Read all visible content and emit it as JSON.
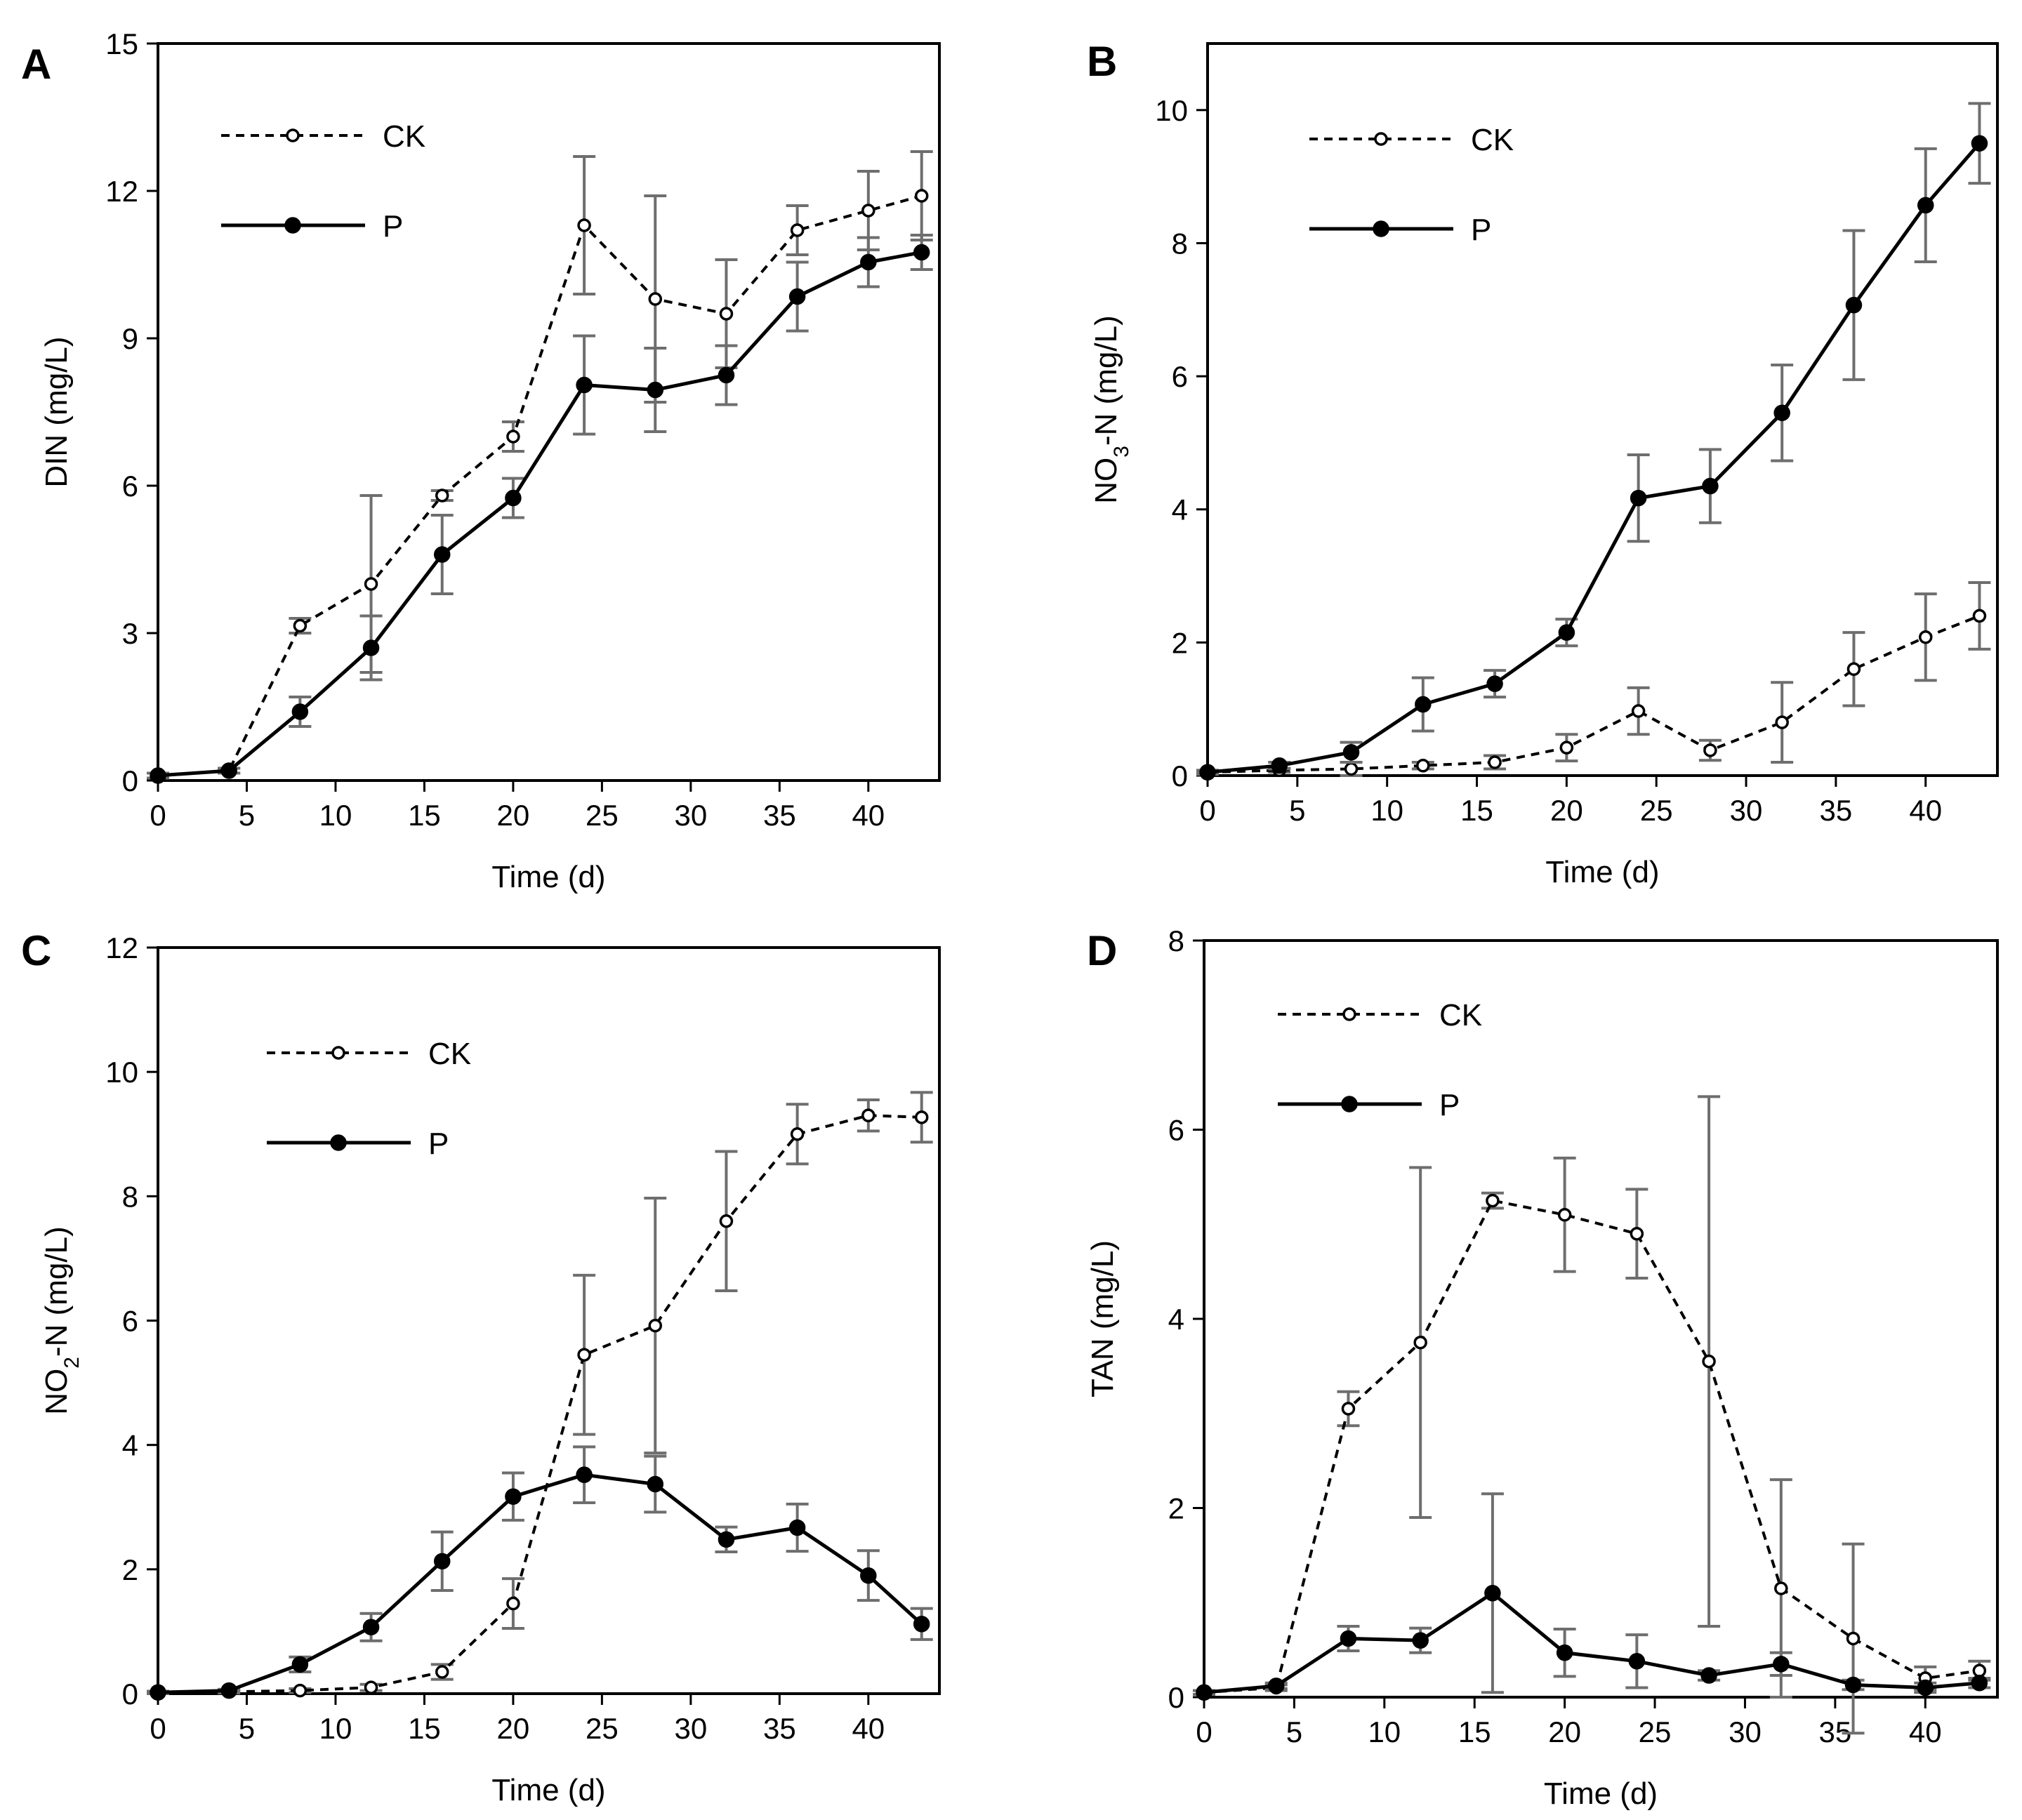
{
  "chart_data": [
    {
      "type": "line",
      "panel": "A",
      "ylabel": "DIN (mg/L)",
      "xlabel": "Time (d)",
      "xlim": [
        0,
        44
      ],
      "ylim": [
        0,
        15
      ],
      "xticks": [
        0,
        5,
        10,
        15,
        20,
        25,
        30,
        35,
        40
      ],
      "yticks": [
        0,
        3,
        6,
        9,
        12,
        15
      ],
      "legend": "top-left",
      "series": [
        {
          "name": "CK",
          "style": "dashed",
          "marker": "open-circle",
          "x": [
            0,
            4,
            8,
            12,
            16,
            20,
            24,
            28,
            32,
            36,
            40,
            43
          ],
          "y": [
            0.1,
            0.2,
            3.15,
            4.0,
            5.8,
            7.0,
            11.3,
            9.8,
            9.5,
            11.2,
            11.6,
            11.9
          ],
          "err": [
            0.05,
            0.05,
            0.15,
            1.8,
            0.1,
            0.3,
            1.4,
            2.1,
            1.1,
            0.5,
            0.8,
            0.9
          ]
        },
        {
          "name": "P",
          "style": "solid",
          "marker": "filled-circle",
          "x": [
            0,
            4,
            8,
            12,
            16,
            20,
            24,
            28,
            32,
            36,
            40,
            43
          ],
          "y": [
            0.1,
            0.2,
            1.4,
            2.7,
            4.6,
            5.75,
            8.05,
            7.95,
            8.25,
            9.85,
            10.55,
            10.75
          ],
          "err": [
            0.05,
            0.05,
            0.3,
            0.65,
            0.8,
            0.4,
            1.0,
            0.85,
            0.6,
            0.7,
            0.5,
            0.35
          ]
        }
      ]
    },
    {
      "type": "line",
      "panel": "B",
      "ylabel": "NO3-N (mg/L)",
      "ylabel_main": "NO",
      "ylabel_sub": "3",
      "ylabel_rest": "-N (mg/L)",
      "xlabel": "Time (d)",
      "xlim": [
        0,
        44
      ],
      "ylim": [
        0,
        11
      ],
      "xticks": [
        0,
        5,
        10,
        15,
        20,
        25,
        30,
        35,
        40
      ],
      "yticks": [
        0,
        2,
        4,
        6,
        8,
        10
      ],
      "legend": "top-left",
      "series": [
        {
          "name": "CK",
          "style": "dashed",
          "marker": "open-circle",
          "x": [
            0,
            4,
            8,
            12,
            16,
            20,
            24,
            28,
            32,
            36,
            40,
            43
          ],
          "y": [
            0.05,
            0.08,
            0.1,
            0.15,
            0.2,
            0.42,
            0.97,
            0.38,
            0.8,
            1.6,
            2.08,
            2.4
          ],
          "err": [
            0.02,
            0.03,
            0.1,
            0.05,
            0.1,
            0.2,
            0.35,
            0.15,
            0.6,
            0.55,
            0.65,
            0.5
          ]
        },
        {
          "name": "P",
          "style": "solid",
          "marker": "filled-circle",
          "x": [
            0,
            4,
            8,
            12,
            16,
            20,
            24,
            28,
            32,
            36,
            40,
            43
          ],
          "y": [
            0.05,
            0.15,
            0.35,
            1.07,
            1.38,
            2.15,
            4.17,
            4.35,
            5.45,
            7.07,
            8.57,
            9.5
          ],
          "err": [
            0.03,
            0.05,
            0.15,
            0.4,
            0.2,
            0.2,
            0.65,
            0.55,
            0.72,
            1.12,
            0.85,
            0.6
          ]
        }
      ]
    },
    {
      "type": "line",
      "panel": "C",
      "ylabel": "NO2-N (mg/L)",
      "ylabel_main": "NO",
      "ylabel_sub": "2",
      "ylabel_rest": "-N (mg/L)",
      "xlabel": "Time (d)",
      "xlim": [
        0,
        44
      ],
      "ylim": [
        0,
        12
      ],
      "xticks": [
        0,
        5,
        10,
        15,
        20,
        25,
        30,
        35,
        40
      ],
      "yticks": [
        0,
        2,
        4,
        6,
        8,
        10,
        12
      ],
      "legend": "top-left",
      "series": [
        {
          "name": "CK",
          "style": "dashed",
          "marker": "open-circle",
          "x": [
            0,
            4,
            8,
            12,
            16,
            20,
            24,
            28,
            32,
            36,
            40,
            43
          ],
          "y": [
            0.02,
            0.03,
            0.05,
            0.1,
            0.35,
            1.45,
            5.45,
            5.92,
            7.6,
            9.0,
            9.3,
            9.27
          ],
          "err": [
            0.02,
            0.02,
            0.03,
            0.05,
            0.12,
            0.4,
            1.28,
            2.05,
            1.12,
            0.48,
            0.25,
            0.4
          ]
        },
        {
          "name": "P",
          "style": "solid",
          "marker": "filled-circle",
          "x": [
            0,
            4,
            8,
            12,
            16,
            20,
            24,
            28,
            32,
            36,
            40,
            43
          ],
          "y": [
            0.02,
            0.05,
            0.47,
            1.07,
            2.13,
            3.17,
            3.52,
            3.37,
            2.48,
            2.67,
            1.9,
            1.12
          ],
          "err": [
            0.02,
            0.02,
            0.12,
            0.22,
            0.47,
            0.38,
            0.45,
            0.45,
            0.2,
            0.38,
            0.4,
            0.25
          ]
        }
      ]
    },
    {
      "type": "line",
      "panel": "D",
      "ylabel": "TAN (mg/L)",
      "xlabel": "Time (d)",
      "xlim": [
        0,
        44
      ],
      "ylim": [
        0,
        8
      ],
      "xticks": [
        0,
        5,
        10,
        15,
        20,
        25,
        30,
        35,
        40
      ],
      "yticks": [
        0,
        2,
        4,
        6,
        8
      ],
      "legend": "top-left",
      "series": [
        {
          "name": "CK",
          "style": "dashed",
          "marker": "open-circle",
          "x": [
            0,
            4,
            8,
            12,
            16,
            20,
            24,
            28,
            32,
            36,
            40,
            43
          ],
          "y": [
            0.05,
            0.1,
            3.05,
            3.75,
            5.25,
            5.1,
            4.9,
            3.55,
            1.15,
            0.62,
            0.2,
            0.28
          ],
          "err": [
            0.02,
            0.03,
            0.18,
            1.85,
            0.08,
            0.6,
            0.47,
            2.8,
            1.15,
            1.0,
            0.12,
            0.1
          ]
        },
        {
          "name": "P",
          "style": "solid",
          "marker": "filled-circle",
          "x": [
            0,
            4,
            8,
            12,
            16,
            20,
            24,
            28,
            32,
            36,
            40,
            43
          ],
          "y": [
            0.05,
            0.12,
            0.62,
            0.6,
            1.1,
            0.47,
            0.38,
            0.23,
            0.35,
            0.13,
            0.1,
            0.15
          ],
          "err": [
            0.02,
            0.03,
            0.13,
            0.13,
            1.05,
            0.25,
            0.28,
            0.05,
            0.12,
            0.05,
            0.05,
            0.05
          ]
        }
      ]
    }
  ]
}
